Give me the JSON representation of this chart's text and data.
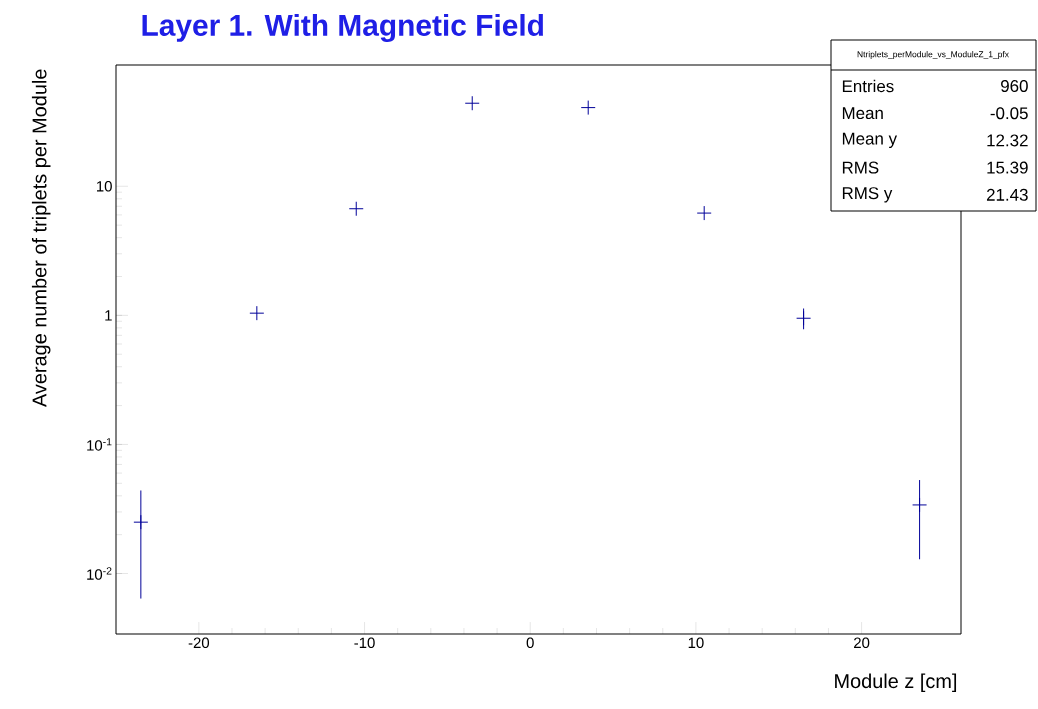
{
  "chart_data": {
    "type": "scatter",
    "title": "Layer 1. With Magnetic Field",
    "xlabel": "Module z [cm]",
    "ylabel": "Average number of triplets per Module",
    "x": [
      -23.5,
      -16.5,
      -10.5,
      -3.5,
      3.5,
      10.5,
      16.5,
      23.5
    ],
    "values": [
      0.025,
      1.04,
      6.7,
      44,
      40.7,
      6.2,
      0.95,
      0.034
    ],
    "errors": [
      [
        0.0064,
        0.044
      ],
      null,
      null,
      null,
      null,
      null,
      [
        0.78,
        1.13
      ],
      [
        0.0129,
        0.053
      ]
    ],
    "color": "#000099",
    "marker": "cross",
    "log": "y",
    "grid": false,
    "legend": false,
    "xlim": [
      -25,
      26
    ],
    "ylim": [
      0.0034,
      87
    ],
    "xticks": [
      -20,
      -10,
      0,
      10,
      20
    ],
    "yticks": [
      {
        "value": 0.01,
        "label": "10$^{-2}$"
      },
      {
        "value": 0.1,
        "label": "10$^{-1}$"
      },
      1,
      10
    ],
    "annotations": [
      "Ntriplets_perModule_vs_ModuleZ_1_pfx",
      "Entries",
      "960",
      "Mean",
      "-0.05",
      "Mean y",
      "12.32",
      "RMS",
      "15.39",
      "RMS y",
      "21.43"
    ]
  }
}
